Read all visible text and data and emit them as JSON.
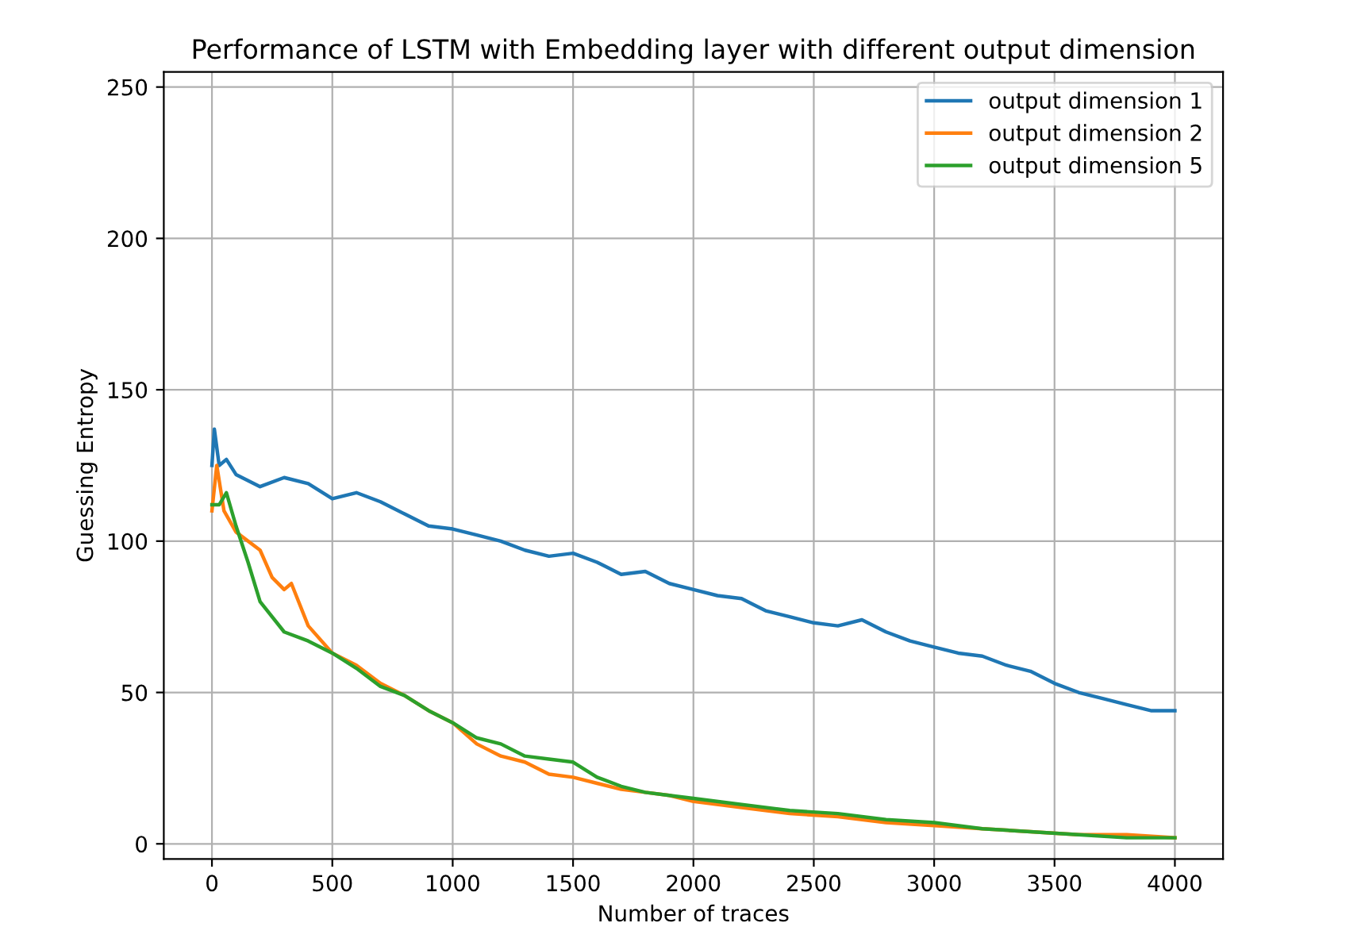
{
  "chart_data": {
    "type": "line",
    "title": "Performance of LSTM with Embedding layer with different output dimension",
    "xlabel": "Number of traces",
    "ylabel": "Guessing Entropy",
    "xlim": [
      -200,
      4200
    ],
    "ylim": [
      -5,
      255
    ],
    "xticks": [
      0,
      500,
      1000,
      1500,
      2000,
      2500,
      3000,
      3500,
      4000
    ],
    "yticks": [
      0,
      50,
      100,
      150,
      200,
      250
    ],
    "grid": true,
    "legend": "top right",
    "series": [
      {
        "name": "output dimension 1",
        "color": "#1f77b4",
        "x": [
          0,
          10,
          30,
          60,
          100,
          200,
          300,
          400,
          500,
          600,
          700,
          800,
          900,
          1000,
          1100,
          1200,
          1300,
          1400,
          1500,
          1600,
          1700,
          1800,
          1900,
          2000,
          2100,
          2200,
          2300,
          2400,
          2500,
          2600,
          2700,
          2800,
          2900,
          3000,
          3100,
          3200,
          3300,
          3400,
          3500,
          3600,
          3700,
          3800,
          3900,
          4000
        ],
        "values": [
          125,
          137,
          125,
          127,
          122,
          118,
          121,
          119,
          114,
          116,
          113,
          109,
          105,
          104,
          102,
          100,
          97,
          95,
          96,
          93,
          89,
          90,
          86,
          84,
          82,
          81,
          77,
          75,
          73,
          72,
          74,
          70,
          67,
          65,
          63,
          62,
          59,
          57,
          53,
          50,
          48,
          46,
          44,
          44
        ]
      },
      {
        "name": "output dimension 2",
        "color": "#ff7f0e",
        "x": [
          0,
          20,
          50,
          100,
          200,
          250,
          300,
          330,
          400,
          500,
          600,
          700,
          800,
          900,
          1000,
          1100,
          1200,
          1300,
          1400,
          1500,
          1600,
          1700,
          1800,
          1900,
          2000,
          2200,
          2400,
          2600,
          2800,
          3000,
          3200,
          3400,
          3600,
          3800,
          4000
        ],
        "values": [
          110,
          125,
          110,
          103,
          97,
          88,
          84,
          86,
          72,
          63,
          59,
          53,
          49,
          44,
          40,
          33,
          29,
          27,
          23,
          22,
          20,
          18,
          17,
          16,
          14,
          12,
          10,
          9,
          7,
          6,
          5,
          4,
          3,
          3,
          2
        ]
      },
      {
        "name": "output dimension 5",
        "color": "#2ca02c",
        "x": [
          0,
          30,
          60,
          100,
          150,
          200,
          300,
          400,
          500,
          600,
          700,
          800,
          900,
          1000,
          1100,
          1200,
          1300,
          1400,
          1500,
          1600,
          1700,
          1800,
          1900,
          2000,
          2200,
          2400,
          2600,
          2800,
          3000,
          3200,
          3400,
          3600,
          3800,
          4000
        ],
        "values": [
          112,
          112,
          116,
          105,
          93,
          80,
          70,
          67,
          63,
          58,
          52,
          49,
          44,
          40,
          35,
          33,
          29,
          28,
          27,
          22,
          19,
          17,
          16,
          15,
          13,
          11,
          10,
          8,
          7,
          5,
          4,
          3,
          2,
          2
        ]
      }
    ]
  }
}
